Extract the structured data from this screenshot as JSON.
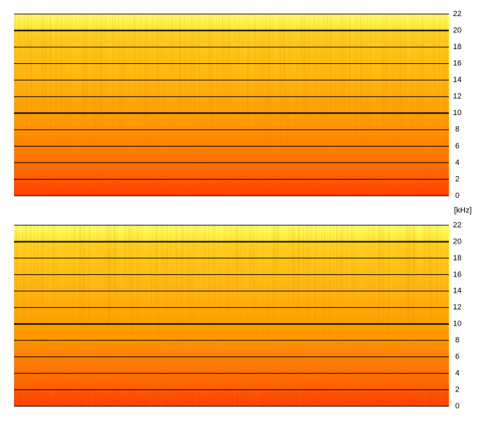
{
  "chart_data": [
    {
      "type": "spectrogram",
      "ylabel": "[kHz]",
      "ylim": [
        0,
        22
      ],
      "yticks": [
        0,
        2,
        4,
        6,
        8,
        10,
        12,
        14,
        16,
        18,
        20,
        22
      ],
      "grid": true
    },
    {
      "type": "spectrogram",
      "ylim": [
        0,
        22
      ],
      "yticks": [
        0,
        2,
        4,
        6,
        8,
        10,
        12,
        14,
        16,
        18,
        20,
        22
      ],
      "grid": true
    }
  ]
}
